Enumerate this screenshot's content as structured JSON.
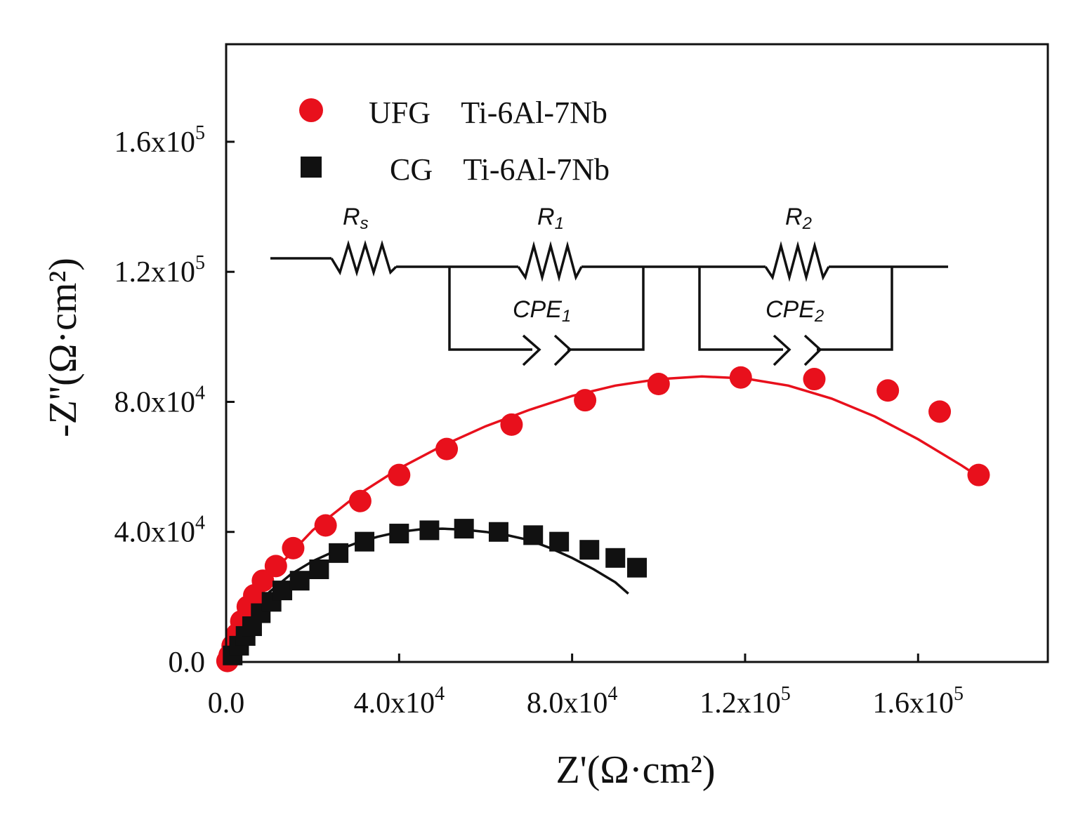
{
  "chart_data": {
    "type": "scatter",
    "title": "",
    "xlabel": "Z'(Ω·cm²)",
    "ylabel": "-Z''(Ω·cm²)",
    "xlim": [
      0,
      190000
    ],
    "ylim": [
      0,
      190000
    ],
    "x_ticks": [
      {
        "value": 0,
        "mantissa": "0.0",
        "exp": ""
      },
      {
        "value": 40000,
        "mantissa": "4.0x10",
        "exp": "4"
      },
      {
        "value": 80000,
        "mantissa": "8.0x10",
        "exp": "4"
      },
      {
        "value": 120000,
        "mantissa": "1.2x10",
        "exp": "5"
      },
      {
        "value": 160000,
        "mantissa": "1.6x10",
        "exp": "5"
      }
    ],
    "y_ticks": [
      {
        "value": 0,
        "mantissa": "0.0",
        "exp": ""
      },
      {
        "value": 40000,
        "mantissa": "4.0x10",
        "exp": "4"
      },
      {
        "value": 80000,
        "mantissa": "8.0x10",
        "exp": "4"
      },
      {
        "value": 120000,
        "mantissa": "1.2x10",
        "exp": "5"
      },
      {
        "value": 160000,
        "mantissa": "1.6x10",
        "exp": "5"
      }
    ],
    "series": [
      {
        "name": "UFG",
        "label": "UFG    Ti-6Al-7Nb",
        "color": "#e8101c",
        "marker": "circle",
        "x": [
          300,
          800,
          1500,
          2500,
          3500,
          5000,
          6500,
          8500,
          11500,
          15500,
          23000,
          31000,
          40000,
          51000,
          66000,
          83000,
          100000,
          119000,
          136000,
          153000,
          165000,
          174000
        ],
        "y": [
          300,
          2000,
          5000,
          8500,
          12500,
          17000,
          20500,
          25000,
          29500,
          35000,
          42000,
          49500,
          57500,
          65500,
          73000,
          80500,
          85500,
          87500,
          87000,
          83500,
          77000,
          57500
        ],
        "fit_x": [
          0,
          2000,
          5000,
          10000,
          20000,
          30000,
          40000,
          50000,
          60000,
          70000,
          80000,
          90000,
          100000,
          110000,
          120000,
          130000,
          140000,
          150000,
          160000,
          170000,
          174000
        ],
        "fit_y": [
          0,
          8500,
          16000,
          26500,
          40500,
          51000,
          59500,
          66500,
          72500,
          77500,
          81800,
          85000,
          87000,
          87800,
          87200,
          85000,
          81000,
          75500,
          68500,
          60500,
          57000
        ]
      },
      {
        "name": "CG",
        "label": "CG    Ti-6Al-7Nb",
        "color": "#111111",
        "marker": "square",
        "x": [
          1500,
          3000,
          4500,
          6000,
          8000,
          10500,
          13000,
          17000,
          21500,
          26000,
          32000,
          40000,
          47000,
          55000,
          63000,
          71000,
          77000,
          84000,
          90000,
          95000
        ],
        "y": [
          2000,
          5000,
          8000,
          11000,
          15000,
          18500,
          22000,
          25000,
          28500,
          33500,
          37000,
          39500,
          40500,
          41000,
          40000,
          39000,
          37000,
          34500,
          32000,
          29000
        ],
        "fit_x": [
          1500,
          3000,
          6000,
          10000,
          15000,
          20000,
          25000,
          30000,
          35000,
          40000,
          45000,
          50000,
          55000,
          60000,
          65000,
          70000,
          75000,
          80000,
          85000,
          90000,
          93000
        ],
        "fit_y": [
          0,
          7000,
          15000,
          21500,
          27000,
          31000,
          34000,
          36500,
          38500,
          40000,
          40800,
          41000,
          40700,
          40000,
          39000,
          37500,
          35000,
          32000,
          28500,
          24500,
          21000
        ]
      }
    ],
    "legend_position": "top-left",
    "inset": {
      "type": "equivalent-circuit",
      "elements": {
        "rs": "R",
        "rs_sub": "s",
        "r1": "R",
        "r1_sub": "1",
        "r2": "R",
        "r2_sub": "2",
        "cpe1": "CPE",
        "cpe1_sub": "1",
        "cpe2": "CPE",
        "cpe2_sub": "2"
      }
    }
  }
}
